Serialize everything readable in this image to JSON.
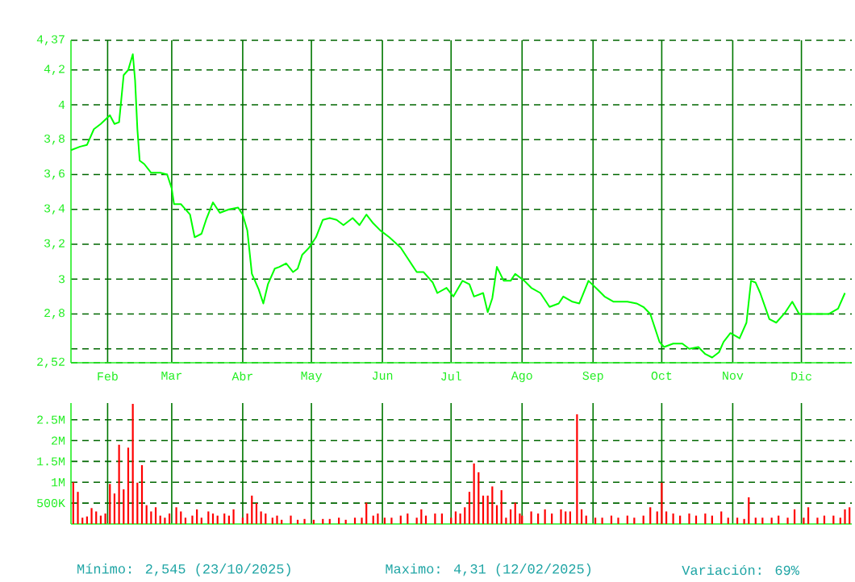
{
  "chart_data": [
    {
      "type": "line",
      "color": "#00ff00",
      "grid": true,
      "xlim": [
        "2025-01-16",
        "2025-12-23"
      ],
      "ylim": [
        2.52,
        4.37
      ],
      "yticks": [
        {
          "value": 2.52,
          "label": "2,52"
        },
        {
          "value": 2.6,
          "label": null
        },
        {
          "value": 2.8,
          "label": "2,8"
        },
        {
          "value": 3,
          "label": "3"
        },
        {
          "value": 3.2,
          "label": "3,2"
        },
        {
          "value": 3.4,
          "label": "3,4"
        },
        {
          "value": 3.6,
          "label": "3,6"
        },
        {
          "value": 3.8,
          "label": "3,8"
        },
        {
          "value": 4,
          "label": "4"
        },
        {
          "value": 4.2,
          "label": "4,2"
        },
        {
          "value": 4.37,
          "label": "4,37"
        }
      ],
      "xticks": [
        {
          "value": "2025-02-01",
          "label": "Feb"
        },
        {
          "value": "2025-03-01",
          "label": "Mar"
        },
        {
          "value": "2025-04-01",
          "label": "Abr"
        },
        {
          "value": "2025-05-01",
          "label": "May"
        },
        {
          "value": "2025-06-01",
          "label": "Jun"
        },
        {
          "value": "2025-07-01",
          "label": "Jul"
        },
        {
          "value": "2025-08-01",
          "label": "Ago"
        },
        {
          "value": "2025-09-01",
          "label": "Sep"
        },
        {
          "value": "2025-10-01",
          "label": "Oct"
        },
        {
          "value": "2025-11-01",
          "label": "Nov"
        },
        {
          "value": "2025-12-01",
          "label": "Dic"
        }
      ],
      "x": [
        "2025-01-16",
        "2025-01-20",
        "2025-01-23",
        "2025-01-26",
        "2025-01-29",
        "2025-02-02",
        "2025-02-04",
        "2025-02-06",
        "2025-02-08",
        "2025-02-10",
        "2025-02-12",
        "2025-02-13",
        "2025-02-14",
        "2025-02-15",
        "2025-02-17",
        "2025-02-20",
        "2025-02-24",
        "2025-02-27",
        "2025-03-01",
        "2025-03-02",
        "2025-03-05",
        "2025-03-09",
        "2025-03-11",
        "2025-03-14",
        "2025-03-16",
        "2025-03-19",
        "2025-03-22",
        "2025-03-26",
        "2025-03-30",
        "2025-04-01",
        "2025-04-03",
        "2025-04-05",
        "2025-04-08",
        "2025-04-10",
        "2025-04-12",
        "2025-04-15",
        "2025-04-17",
        "2025-04-20",
        "2025-04-23",
        "2025-04-25",
        "2025-04-27",
        "2025-04-30",
        "2025-05-03",
        "2025-05-06",
        "2025-05-09",
        "2025-05-12",
        "2025-05-15",
        "2025-05-19",
        "2025-05-22",
        "2025-05-25",
        "2025-05-28",
        "2025-05-31",
        "2025-06-04",
        "2025-06-09",
        "2025-06-12",
        "2025-06-16",
        "2025-06-19",
        "2025-06-23",
        "2025-06-25",
        "2025-06-29",
        "2025-07-02",
        "2025-07-06",
        "2025-07-09",
        "2025-07-11",
        "2025-07-15",
        "2025-07-17",
        "2025-07-19",
        "2025-07-21",
        "2025-07-24",
        "2025-07-27",
        "2025-07-29",
        "2025-08-02",
        "2025-08-05",
        "2025-08-09",
        "2025-08-13",
        "2025-08-17",
        "2025-08-19",
        "2025-08-23",
        "2025-08-26",
        "2025-08-30",
        "2025-09-03",
        "2025-09-06",
        "2025-09-10",
        "2025-09-13",
        "2025-09-16",
        "2025-09-20",
        "2025-09-23",
        "2025-09-26",
        "2025-09-30",
        "2025-10-02",
        "2025-10-06",
        "2025-10-10",
        "2025-10-13",
        "2025-10-17",
        "2025-10-20",
        "2025-10-23",
        "2025-10-26",
        "2025-10-28",
        "2025-10-31",
        "2025-11-04",
        "2025-11-07",
        "2025-11-09",
        "2025-11-11",
        "2025-11-13",
        "2025-11-17",
        "2025-11-20",
        "2025-11-24",
        "2025-11-27",
        "2025-11-30",
        "2025-12-04",
        "2025-12-09",
        "2025-12-13",
        "2025-12-17",
        "2025-12-20"
      ],
      "values": [
        3.74,
        3.76,
        3.77,
        3.86,
        3.89,
        3.94,
        3.89,
        3.9,
        4.17,
        4.2,
        4.29,
        4.14,
        3.86,
        3.68,
        3.66,
        3.61,
        3.61,
        3.6,
        3.52,
        3.43,
        3.43,
        3.37,
        3.24,
        3.26,
        3.34,
        3.44,
        3.38,
        3.4,
        3.41,
        3.37,
        3.28,
        3.03,
        2.94,
        2.86,
        2.97,
        3.06,
        3.07,
        3.09,
        3.04,
        3.06,
        3.14,
        3.18,
        3.24,
        3.34,
        3.35,
        3.34,
        3.31,
        3.35,
        3.31,
        3.37,
        3.32,
        3.28,
        3.24,
        3.18,
        3.12,
        3.04,
        3.04,
        2.98,
        2.92,
        2.95,
        2.9,
        2.99,
        2.97,
        2.9,
        2.92,
        2.81,
        2.89,
        3.07,
        2.99,
        2.99,
        3.03,
        2.99,
        2.95,
        2.92,
        2.84,
        2.86,
        2.9,
        2.87,
        2.86,
        2.99,
        2.94,
        2.9,
        2.87,
        2.87,
        2.87,
        2.86,
        2.84,
        2.8,
        2.64,
        2.61,
        2.63,
        2.63,
        2.6,
        2.61,
        2.57,
        2.55,
        2.58,
        2.64,
        2.69,
        2.66,
        2.75,
        2.99,
        2.98,
        2.92,
        2.77,
        2.75,
        2.81,
        2.87,
        2.8,
        2.8,
        2.8,
        2.8,
        2.83,
        2.92
      ]
    },
    {
      "type": "bar",
      "color": "#ff0000",
      "grid": true,
      "tick_labels": "y",
      "xlim": [
        "2025-01-16",
        "2025-12-23"
      ],
      "ylim": [
        0,
        2900000
      ],
      "yticks": [
        {
          "value": 500000,
          "label": "500K"
        },
        {
          "value": 1000000,
          "label": "1M"
        },
        {
          "value": 1500000,
          "label": "1.5M"
        },
        {
          "value": 2000000,
          "label": "2M"
        },
        {
          "value": 2500000,
          "label": "2.5M"
        }
      ],
      "xticks": [
        {
          "value": "2025-02-01",
          "label": null
        },
        {
          "value": "2025-03-01",
          "label": null
        },
        {
          "value": "2025-04-01",
          "label": null
        },
        {
          "value": "2025-05-01",
          "label": null
        },
        {
          "value": "2025-06-01",
          "label": null
        },
        {
          "value": "2025-07-01",
          "label": null
        },
        {
          "value": "2025-08-01",
          "label": null
        },
        {
          "value": "2025-09-01",
          "label": null
        },
        {
          "value": "2025-10-01",
          "label": null
        },
        {
          "value": "2025-11-01",
          "label": null
        },
        {
          "value": "2025-12-01",
          "label": null
        }
      ],
      "x": [
        "2025-01-17",
        "2025-01-19",
        "2025-01-21",
        "2025-01-23",
        "2025-01-25",
        "2025-01-27",
        "2025-01-29",
        "2025-01-31",
        "2025-02-02",
        "2025-02-04",
        "2025-02-06",
        "2025-02-08",
        "2025-02-10",
        "2025-02-12",
        "2025-02-14",
        "2025-02-16",
        "2025-02-18",
        "2025-02-20",
        "2025-02-22",
        "2025-02-24",
        "2025-02-26",
        "2025-02-28",
        "2025-03-03",
        "2025-03-05",
        "2025-03-07",
        "2025-03-10",
        "2025-03-12",
        "2025-03-14",
        "2025-03-17",
        "2025-03-19",
        "2025-03-21",
        "2025-03-24",
        "2025-03-26",
        "2025-03-28",
        "2025-04-01",
        "2025-04-03",
        "2025-04-05",
        "2025-04-07",
        "2025-04-09",
        "2025-04-11",
        "2025-04-14",
        "2025-04-16",
        "2025-04-18",
        "2025-04-22",
        "2025-04-25",
        "2025-04-28",
        "2025-05-02",
        "2025-05-06",
        "2025-05-09",
        "2025-05-13",
        "2025-05-16",
        "2025-05-20",
        "2025-05-23",
        "2025-05-25",
        "2025-05-28",
        "2025-05-30",
        "2025-06-02",
        "2025-06-05",
        "2025-06-09",
        "2025-06-12",
        "2025-06-16",
        "2025-06-18",
        "2025-06-20",
        "2025-06-24",
        "2025-06-27",
        "2025-07-01",
        "2025-07-03",
        "2025-07-05",
        "2025-07-07",
        "2025-07-09",
        "2025-07-11",
        "2025-07-13",
        "2025-07-15",
        "2025-07-17",
        "2025-07-19",
        "2025-07-21",
        "2025-07-23",
        "2025-07-25",
        "2025-07-27",
        "2025-07-29",
        "2025-07-31",
        "2025-08-01",
        "2025-08-05",
        "2025-08-08",
        "2025-08-11",
        "2025-08-14",
        "2025-08-18",
        "2025-08-20",
        "2025-08-22",
        "2025-08-25",
        "2025-08-27",
        "2025-08-29",
        "2025-09-02",
        "2025-09-05",
        "2025-09-09",
        "2025-09-12",
        "2025-09-16",
        "2025-09-19",
        "2025-09-23",
        "2025-09-26",
        "2025-09-29",
        "2025-10-01",
        "2025-10-03",
        "2025-10-06",
        "2025-10-09",
        "2025-10-13",
        "2025-10-16",
        "2025-10-20",
        "2025-10-23",
        "2025-10-27",
        "2025-10-30",
        "2025-11-03",
        "2025-11-06",
        "2025-11-08",
        "2025-11-11",
        "2025-11-14",
        "2025-11-18",
        "2025-11-21",
        "2025-11-25",
        "2025-11-28",
        "2025-12-02",
        "2025-12-04",
        "2025-12-08",
        "2025-12-11",
        "2025-12-15",
        "2025-12-18",
        "2025-12-20",
        "2025-12-22"
      ],
      "values": [
        1000000,
        770000,
        150000,
        180000,
        380000,
        300000,
        200000,
        250000,
        960000,
        730000,
        1900000,
        830000,
        1830000,
        2880000,
        990000,
        1410000,
        450000,
        300000,
        400000,
        200000,
        150000,
        250000,
        400000,
        300000,
        150000,
        200000,
        350000,
        150000,
        300000,
        250000,
        200000,
        250000,
        200000,
        350000,
        150000,
        250000,
        680000,
        500000,
        300000,
        250000,
        150000,
        200000,
        100000,
        200000,
        100000,
        120000,
        100000,
        120000,
        120000,
        150000,
        100000,
        150000,
        150000,
        510000,
        200000,
        250000,
        150000,
        150000,
        200000,
        250000,
        150000,
        350000,
        200000,
        250000,
        250000,
        150000,
        300000,
        250000,
        400000,
        770000,
        1450000,
        1240000,
        680000,
        680000,
        900000,
        450000,
        810000,
        150000,
        350000,
        510000,
        250000,
        200000,
        300000,
        250000,
        350000,
        250000,
        350000,
        300000,
        300000,
        2630000,
        350000,
        200000,
        150000,
        150000,
        200000,
        150000,
        200000,
        150000,
        200000,
        400000,
        300000,
        990000,
        300000,
        250000,
        200000,
        250000,
        200000,
        250000,
        200000,
        300000,
        150000,
        150000,
        120000,
        640000,
        150000,
        150000,
        150000,
        200000,
        150000,
        350000,
        150000,
        400000,
        150000,
        200000,
        200000,
        150000,
        350000,
        400000
      ],
      "annotations": [
        "Mínimo: 2,545 (23/10/2025)",
        "Maximo: 4,31 (12/02/2025)",
        "Variación: 69%"
      ]
    }
  ]
}
